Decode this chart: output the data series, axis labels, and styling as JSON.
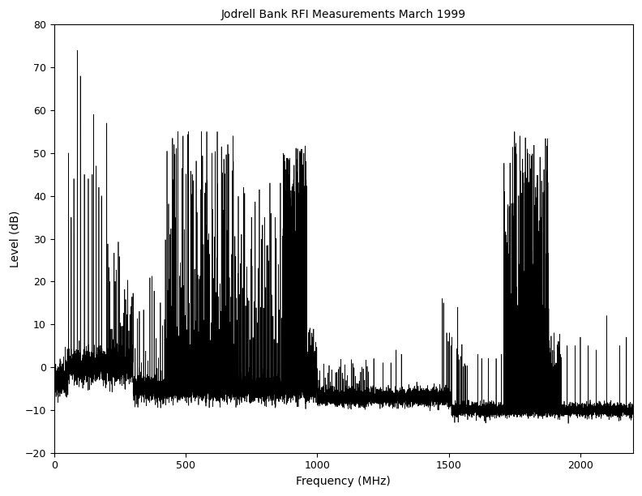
{
  "title": "Jodrell Bank RFI Measurements March 1999",
  "xlabel": "Frequency (MHz)",
  "ylabel": "Level (dB)",
  "xlim": [
    0,
    2200
  ],
  "ylim": [
    -20,
    80
  ],
  "xticks": [
    0,
    500,
    1000,
    1500,
    2000
  ],
  "yticks": [
    -20,
    -10,
    0,
    10,
    20,
    30,
    40,
    50,
    60,
    70,
    80
  ],
  "line_color": "black",
  "bg_color": "white",
  "title_fontsize": 10,
  "label_fontsize": 10,
  "tick_fontsize": 9,
  "linewidth": 0.5,
  "seed": 42,
  "freq_start": 0,
  "freq_end": 2200,
  "num_points": 11000
}
